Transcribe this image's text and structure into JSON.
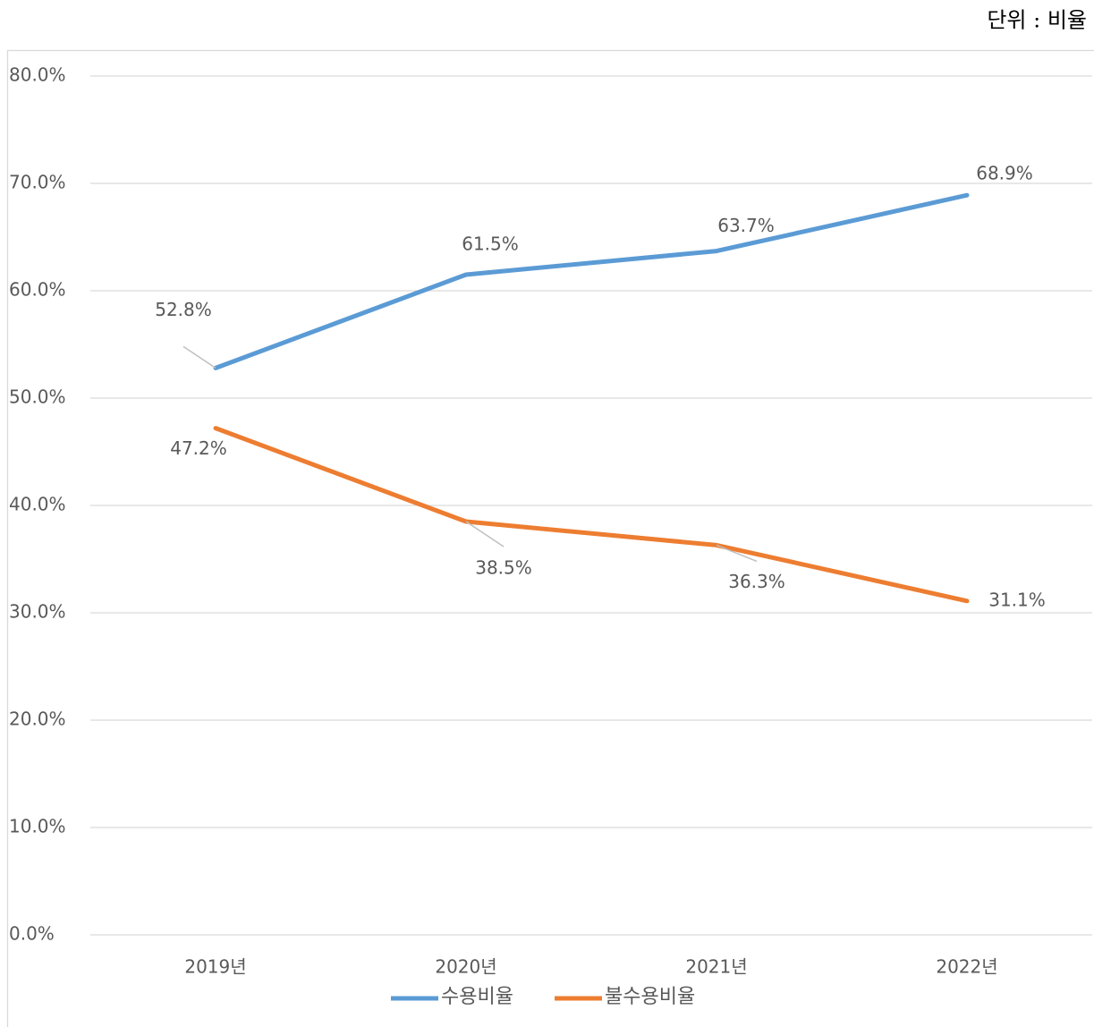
{
  "chart_data": {
    "type": "line",
    "annotation": "단위 : 비율",
    "categories": [
      "2019년",
      "2020년",
      "2021년",
      "2022년"
    ],
    "series": [
      {
        "name": "수용비율",
        "color": "#5b9bd5",
        "values": [
          52.8,
          61.5,
          63.7,
          68.9
        ],
        "value_labels": [
          "52.8%",
          "61.5%",
          "63.7%",
          "68.9%"
        ]
      },
      {
        "name": "불수용비율",
        "color": "#ed7d31",
        "values": [
          47.2,
          38.5,
          36.3,
          31.1
        ],
        "value_labels": [
          "47.2%",
          "38.5%",
          "36.3%",
          "31.1%"
        ]
      }
    ],
    "ylim": [
      0,
      80
    ],
    "yticks": [
      {
        "value": 0,
        "label": "0.0%"
      },
      {
        "value": 10,
        "label": "10.0%"
      },
      {
        "value": 20,
        "label": "20.0%"
      },
      {
        "value": 30,
        "label": "30.0%"
      },
      {
        "value": 40,
        "label": "40.0%"
      },
      {
        "value": 50,
        "label": "50.0%"
      },
      {
        "value": 60,
        "label": "60.0%"
      },
      {
        "value": 70,
        "label": "70.0%"
      },
      {
        "value": 80,
        "label": "80.0%"
      }
    ],
    "grid": true,
    "legend": "bottom"
  }
}
